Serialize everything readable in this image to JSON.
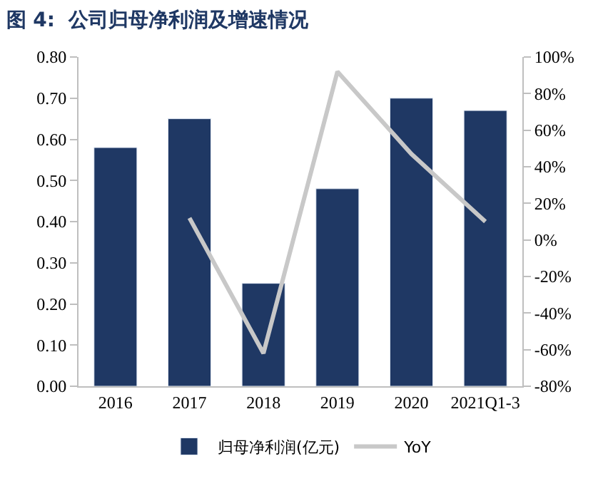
{
  "chart_data": {
    "type": "bar",
    "title": "图 4:  公司归母净利润及增速情况",
    "categories": [
      "2016",
      "2017",
      "2018",
      "2019",
      "2020",
      "2021Q1-3"
    ],
    "series": [
      {
        "name": "归母净利润(亿元)",
        "color": "#1f3864",
        "values": [
          0.58,
          0.65,
          0.25,
          0.48,
          0.7,
          0.67
        ]
      },
      {
        "name": "YoY",
        "type": "line",
        "axis": "y2",
        "color": "#c8c8c8",
        "values": [
          null,
          12,
          -62,
          92,
          47,
          10
        ]
      }
    ],
    "ylim": [
      0,
      0.8
    ],
    "yticks": [
      {
        "value": 0,
        "label": "0.00"
      },
      {
        "value": 0.1,
        "label": "0.10"
      },
      {
        "value": 0.2,
        "label": "0.20"
      },
      {
        "value": 0.3,
        "label": "0.30"
      },
      {
        "value": 0.4,
        "label": "0.40"
      },
      {
        "value": 0.5,
        "label": "0.50"
      },
      {
        "value": 0.6,
        "label": "0.60"
      },
      {
        "value": 0.7,
        "label": "0.70"
      },
      {
        "value": 0.8,
        "label": "0.80"
      }
    ],
    "y2lim": [
      -80,
      100
    ],
    "y2ticks": [
      {
        "value": -80,
        "label": "-80%"
      },
      {
        "value": -60,
        "label": "-60%"
      },
      {
        "value": -40,
        "label": "-40%"
      },
      {
        "value": -20,
        "label": "-20%"
      },
      {
        "value": 0,
        "label": "0%"
      },
      {
        "value": 20,
        "label": "20%"
      },
      {
        "value": 40,
        "label": "40%"
      },
      {
        "value": 60,
        "label": "60%"
      },
      {
        "value": 80,
        "label": "80%"
      },
      {
        "value": 100,
        "label": "100%"
      }
    ],
    "legend": "bottom",
    "marker": "none"
  }
}
